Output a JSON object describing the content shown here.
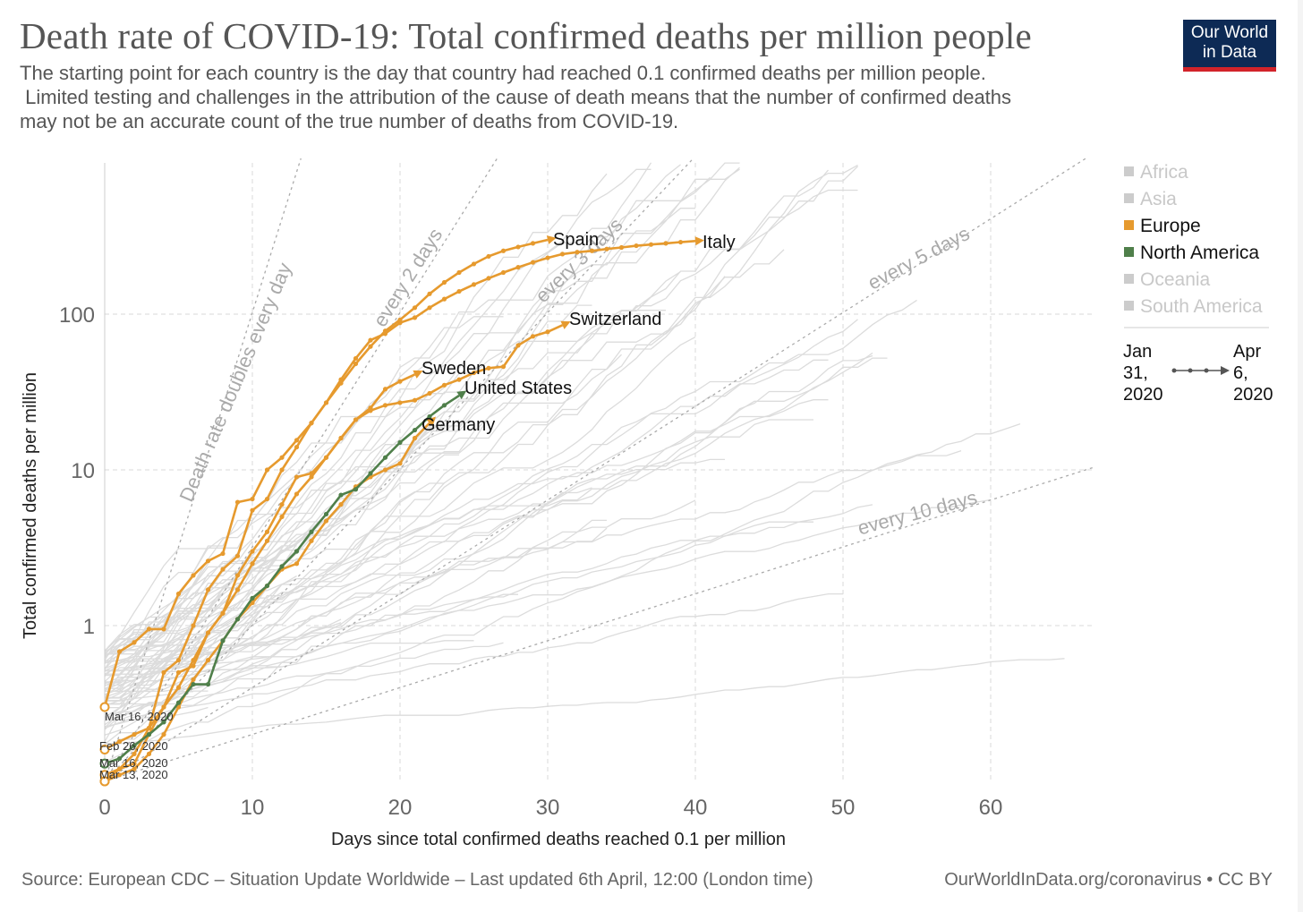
{
  "header": {
    "title": "Death rate of COVID-19: Total confirmed deaths per million people",
    "subtitle_lines": [
      "The starting point for each country is the day that country had reached 0.1 confirmed deaths per million people.",
      " Limited testing and challenges in the attribution of the cause of death means that the number of confirmed deaths",
      "may not be an accurate count of the true number of deaths from COVID-19."
    ],
    "logo_line1": "Our World",
    "logo_line2": "in Data"
  },
  "footer": {
    "source": "Source: European CDC – Situation Update Worldwide – Last updated 6th April, 12:00 (London time)",
    "credit": "OurWorldInData.org/coronavirus • CC BY"
  },
  "legend": {
    "items": [
      {
        "label": "Africa",
        "color": "#cccccc",
        "active": false
      },
      {
        "label": "Asia",
        "color": "#cccccc",
        "active": false
      },
      {
        "label": "Europe",
        "color": "#e69a2e",
        "active": true
      },
      {
        "label": "North America",
        "color": "#4f7f4a",
        "active": true
      },
      {
        "label": "Oceania",
        "color": "#cccccc",
        "active": false
      },
      {
        "label": "South America",
        "color": "#cccccc",
        "active": false
      }
    ],
    "timeline_start": [
      "Jan",
      "31,",
      "2020"
    ],
    "timeline_end": [
      "Apr",
      "6,",
      "2020"
    ]
  },
  "colors": {
    "europe": "#e69a2e",
    "north_america": "#4f7f4a",
    "grid": "#d8d8d8",
    "background_lines": "#dcdcdc",
    "guide": "#aaaaaa"
  },
  "chart_data": {
    "type": "line",
    "xlabel": "Days since total confirmed deaths reached 0.1 per million",
    "ylabel": "Total confirmed deaths per million",
    "xlim": [
      0,
      67
    ],
    "ylim": [
      0.1,
      1000
    ],
    "yscale": "log",
    "x_ticks": [
      0,
      10,
      20,
      30,
      40,
      50,
      60
    ],
    "y_ticks": [
      {
        "value": 1,
        "label": "1"
      },
      {
        "value": 10,
        "label": "10"
      },
      {
        "value": 100,
        "label": "100"
      }
    ],
    "grid": true,
    "legend_position": "right",
    "doubling_guides": [
      {
        "days": 1,
        "label": "Death rate doubles every day"
      },
      {
        "days": 2,
        "label": "every 2 days"
      },
      {
        "days": 3,
        "label": "every 3 days"
      },
      {
        "days": 5,
        "label": "every 5 days"
      },
      {
        "days": 10,
        "label": "every 10 days"
      }
    ],
    "series": [
      {
        "name": "Spain",
        "region": "Europe",
        "x": [
          0,
          1,
          2,
          3,
          4,
          5,
          6,
          7,
          8,
          9,
          10,
          11,
          12,
          13,
          14,
          15,
          16,
          17,
          18,
          19,
          20,
          21,
          22,
          23,
          24,
          25,
          26,
          27,
          28,
          29,
          30
        ],
        "y": [
          0.16,
          0.18,
          0.2,
          0.22,
          0.5,
          0.6,
          1.0,
          1.7,
          2.3,
          2.8,
          5.5,
          6.5,
          10,
          14,
          20,
          27,
          36,
          48,
          62,
          78,
          92,
          110,
          135,
          160,
          185,
          210,
          235,
          255,
          270,
          285,
          300
        ]
      },
      {
        "name": "Italy",
        "region": "Europe",
        "x": [
          0,
          1,
          2,
          3,
          4,
          5,
          6,
          7,
          8,
          9,
          10,
          11,
          12,
          13,
          14,
          15,
          16,
          17,
          18,
          19,
          20,
          21,
          22,
          23,
          24,
          25,
          26,
          27,
          28,
          29,
          30,
          31,
          32,
          33,
          34,
          35,
          36,
          37,
          38,
          39,
          40
        ],
        "y": [
          0.3,
          0.68,
          0.78,
          0.95,
          0.95,
          1.6,
          2.1,
          2.6,
          2.9,
          6.2,
          6.5,
          10,
          12,
          15.5,
          20,
          27,
          38,
          52,
          68,
          75,
          88,
          95,
          110,
          125,
          140,
          155,
          170,
          185,
          200,
          215,
          230,
          243,
          250,
          255,
          262,
          268,
          275,
          280,
          285,
          290,
          295
        ]
      },
      {
        "name": "Switzerland",
        "region": "Europe",
        "x": [
          0,
          1,
          2,
          3,
          4,
          5,
          6,
          7,
          8,
          9,
          10,
          11,
          12,
          13,
          14,
          15,
          16,
          17,
          18,
          19,
          20,
          21,
          22,
          23,
          24,
          25,
          26,
          27,
          28,
          29,
          30,
          31
        ],
        "y": [
          0.11,
          0.12,
          0.15,
          0.22,
          0.3,
          0.5,
          0.55,
          0.9,
          1.2,
          2.1,
          3.0,
          4.0,
          6.0,
          9.0,
          9.5,
          12,
          16,
          21,
          24,
          26,
          27,
          28,
          31,
          35,
          38,
          42,
          45,
          46,
          63,
          72,
          77,
          85
        ]
      },
      {
        "name": "Sweden",
        "region": "Europe",
        "x": [
          0,
          1,
          2,
          3,
          4,
          5,
          6,
          7,
          8,
          9,
          10,
          11,
          12,
          13,
          14,
          15,
          16,
          17,
          18,
          19,
          20,
          21
        ],
        "y": [
          0.1,
          0.12,
          0.13,
          0.2,
          0.3,
          0.4,
          0.6,
          0.9,
          1.2,
          1.7,
          2.5,
          3.5,
          5.0,
          7.0,
          9.0,
          12,
          16,
          21,
          25,
          33,
          37,
          41
        ]
      },
      {
        "name": "Germany",
        "region": "Europe",
        "x": [
          0,
          1,
          2,
          3,
          4,
          5,
          6,
          7,
          8,
          9,
          10,
          11,
          12,
          13,
          14,
          15,
          16,
          17,
          18,
          19,
          20,
          21,
          22
        ],
        "y": [
          0.1,
          0.11,
          0.12,
          0.15,
          0.2,
          0.3,
          0.45,
          0.6,
          0.8,
          1.1,
          1.4,
          1.8,
          2.3,
          2.5,
          3.5,
          4.7,
          6.0,
          7.8,
          9.0,
          10,
          11,
          16,
          20
        ]
      },
      {
        "name": "United States",
        "region": "North America",
        "x": [
          0,
          1,
          2,
          3,
          4,
          5,
          6,
          7,
          8,
          9,
          10,
          11,
          12,
          13,
          14,
          15,
          16,
          17,
          18,
          19,
          20,
          21,
          22,
          23,
          24
        ],
        "y": [
          0.13,
          0.14,
          0.17,
          0.2,
          0.24,
          0.32,
          0.42,
          0.42,
          0.8,
          1.1,
          1.5,
          1.8,
          2.4,
          3.0,
          4.0,
          5.2,
          6.9,
          7.5,
          9.5,
          12,
          15,
          18,
          22,
          26,
          30
        ]
      }
    ],
    "label_annotations": [
      "Spain",
      "Italy",
      "Switzerland",
      "Sweden",
      "United States",
      "Germany"
    ],
    "start_date_labels": [
      "Mar 16, 2020",
      "Feb 26, 2020",
      "Mar 16, 2020",
      "Mar 13, 2020"
    ]
  }
}
